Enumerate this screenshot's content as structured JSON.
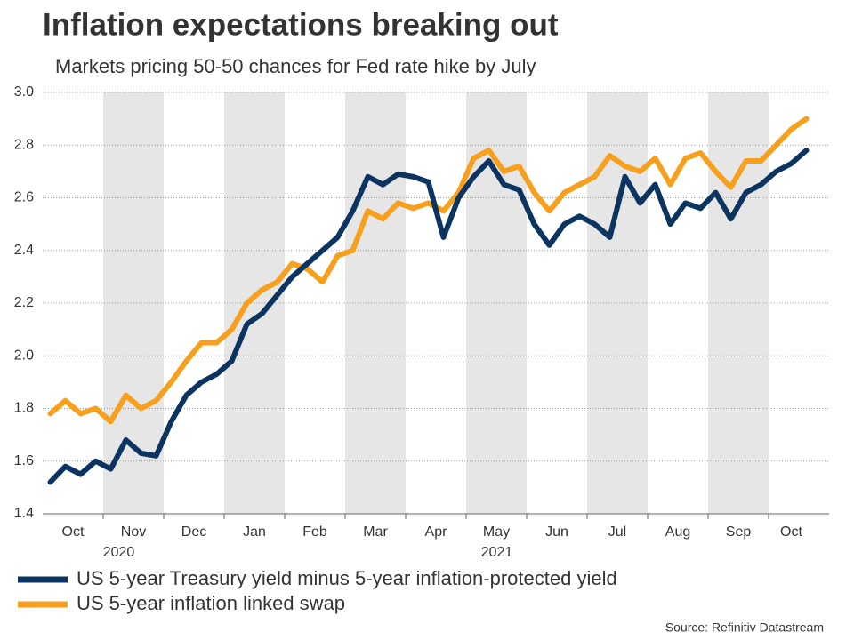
{
  "chart_data": {
    "type": "line",
    "title": "Inflation expectations breaking out",
    "subtitle": "Markets pricing 50-50 chances for Fed rate hike by July",
    "source": "Source: Refinitiv Datastream",
    "categories": [
      null,
      "Oct",
      null,
      null,
      null,
      "Nov",
      null,
      null,
      null,
      "Dec",
      null,
      null,
      null,
      "Jan",
      null,
      null,
      null,
      "Feb",
      null,
      null,
      null,
      "Mar",
      null,
      null,
      null,
      "Apr",
      null,
      null,
      null,
      "May",
      null,
      null,
      null,
      "Jun",
      null,
      null,
      null,
      "Jul",
      null,
      null,
      null,
      "Aug",
      null,
      null,
      null,
      "Sep",
      null,
      null,
      null,
      "Oct",
      null
    ],
    "year_labels": [
      null,
      null,
      null,
      null,
      null,
      "2020",
      null,
      null,
      null,
      null,
      null,
      null,
      null,
      null,
      null,
      null,
      null,
      null,
      null,
      null,
      null,
      null,
      null,
      null,
      null,
      null,
      null,
      null,
      null,
      null,
      "2021",
      null,
      null,
      null,
      null,
      null,
      null,
      null,
      null,
      null,
      null,
      null,
      null,
      null,
      null,
      null,
      null,
      null,
      null,
      null,
      null
    ],
    "series": [
      {
        "name": "US 5-year Treasury yield minus 5-year inflation-protected yield",
        "color": "#0c3460",
        "values": [
          1.52,
          1.58,
          1.55,
          1.6,
          1.57,
          1.68,
          1.63,
          1.62,
          1.75,
          1.85,
          1.9,
          1.93,
          1.98,
          2.12,
          2.16,
          2.23,
          2.3,
          2.35,
          2.4,
          2.45,
          2.55,
          2.68,
          2.65,
          2.69,
          2.68,
          2.66,
          2.45,
          2.6,
          2.68,
          2.74,
          2.65,
          2.63,
          2.5,
          2.42,
          2.5,
          2.53,
          2.5,
          2.45,
          2.68,
          2.58,
          2.65,
          2.5,
          2.58,
          2.56,
          2.62,
          2.52,
          2.62,
          2.65,
          2.7,
          2.73,
          2.78
        ]
      },
      {
        "name": "US 5-year inflation linked swap",
        "color": "#f7a01d",
        "values": [
          1.78,
          1.83,
          1.78,
          1.8,
          1.75,
          1.85,
          1.8,
          1.83,
          1.9,
          1.98,
          2.05,
          2.05,
          2.1,
          2.2,
          2.25,
          2.28,
          2.35,
          2.33,
          2.28,
          2.38,
          2.4,
          2.55,
          2.52,
          2.58,
          2.56,
          2.58,
          2.55,
          2.62,
          2.75,
          2.78,
          2.7,
          2.72,
          2.62,
          2.55,
          2.62,
          2.65,
          2.68,
          2.76,
          2.72,
          2.7,
          2.75,
          2.65,
          2.75,
          2.77,
          2.7,
          2.64,
          2.74,
          2.74,
          2.8,
          2.86,
          2.9
        ]
      }
    ],
    "ylim": [
      1.4,
      3.0
    ],
    "yticks": [
      {
        "value": 1.4,
        "label": "1.4"
      },
      {
        "value": 1.6,
        "label": "1.6"
      },
      {
        "value": 1.8,
        "label": "1.8"
      },
      {
        "value": 2.0,
        "label": "2.0"
      },
      {
        "value": 2.2,
        "label": "2.2"
      },
      {
        "value": 2.4,
        "label": "2.4"
      },
      {
        "value": 2.6,
        "label": "2.6"
      },
      {
        "value": 2.8,
        "label": "2.8"
      },
      {
        "value": 3.0,
        "label": "3.0"
      }
    ],
    "grid": true
  }
}
